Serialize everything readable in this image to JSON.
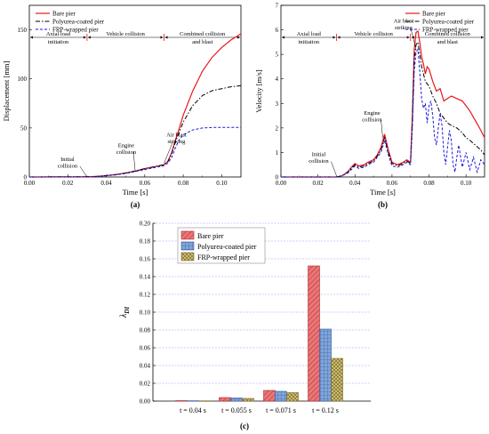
{
  "colors": {
    "bare": "#e8161b",
    "polyurea": "#000000",
    "frp": "#1a1adb",
    "bar_bare": "#e97678",
    "bar_polyurea": "#7fa6d9",
    "bar_frp": "#d8c67a",
    "grid": "#9a9af0"
  },
  "chart_data": [
    {
      "type": "line",
      "panel_label": "(a)",
      "xlabel": "Time [s]",
      "ylabel": "Displacement [mm]",
      "xlim": [
        0,
        0.11
      ],
      "ylim": [
        0,
        175
      ],
      "xticks": [
        "0.00",
        "0.02",
        "0.04",
        "0.06",
        "0.08",
        "0.10"
      ],
      "yticks": [
        "0",
        "50",
        "100",
        "150"
      ],
      "legend": {
        "position": "top-left"
      },
      "phases": [
        {
          "label_lines": [
            "Axial load",
            "initiation"
          ],
          "x": [
            0,
            0.03
          ]
        },
        {
          "label_lines": [
            "Vehicle collision"
          ],
          "x": [
            0.03,
            0.07
          ]
        },
        {
          "label_lines": [
            "Combined collision",
            "and blast"
          ],
          "x": [
            0.07,
            0.11
          ]
        }
      ],
      "annotations": [
        {
          "label_lines": [
            "Initial",
            "collision"
          ],
          "x": 0.03,
          "y": 0
        },
        {
          "label_lines": [
            "Engine",
            "collision"
          ],
          "x": 0.055,
          "y": 7
        },
        {
          "label_lines": [
            "Air blast",
            "striking"
          ],
          "x": 0.07,
          "y": 14
        }
      ],
      "series": [
        {
          "name": "Bare pier",
          "style": "solid",
          "x": [
            0,
            0.03,
            0.035,
            0.04,
            0.045,
            0.05,
            0.055,
            0.06,
            0.065,
            0.07,
            0.072,
            0.074,
            0.076,
            0.078,
            0.08,
            0.085,
            0.09,
            0.095,
            0.1,
            0.105,
            0.11
          ],
          "y": [
            0,
            0.2,
            0.6,
            1.4,
            2.5,
            4,
            6,
            8.5,
            10.5,
            12.5,
            16,
            25,
            38,
            50,
            63,
            88,
            108,
            122,
            132,
            140,
            146
          ]
        },
        {
          "name": "Polyurea-coated pier",
          "style": "dashdot",
          "x": [
            0,
            0.03,
            0.035,
            0.04,
            0.045,
            0.05,
            0.055,
            0.06,
            0.065,
            0.07,
            0.072,
            0.074,
            0.076,
            0.078,
            0.08,
            0.085,
            0.09,
            0.095,
            0.1,
            0.105,
            0.11
          ],
          "y": [
            0,
            0.2,
            0.6,
            1.4,
            2.5,
            4,
            6,
            8.5,
            10.5,
            12.5,
            15.5,
            24,
            36,
            46,
            56,
            73,
            83,
            88,
            90,
            92,
            93
          ]
        },
        {
          "name": "FRP-wrapped pier",
          "style": "dash",
          "x": [
            0,
            0.03,
            0.035,
            0.04,
            0.045,
            0.05,
            0.055,
            0.06,
            0.065,
            0.07,
            0.072,
            0.074,
            0.076,
            0.078,
            0.08,
            0.085,
            0.09,
            0.095,
            0.1,
            0.105,
            0.11
          ],
          "y": [
            0,
            0.2,
            0.5,
            1.2,
            2.2,
            3.5,
            5.5,
            7.5,
            9.5,
            11.5,
            14,
            20,
            30,
            38,
            43,
            48,
            50,
            50.5,
            50.5,
            50.5,
            50.5
          ]
        }
      ]
    },
    {
      "type": "line",
      "panel_label": "(b)",
      "xlabel": "Time [s]",
      "ylabel": "Velocity [m/s]",
      "xlim": [
        0,
        0.11
      ],
      "ylim": [
        0,
        7
      ],
      "xticks": [
        "0.00",
        "0.02",
        "0.04",
        "0.06",
        "0.08",
        "0.10"
      ],
      "yticks": [
        "0",
        "1",
        "2",
        "3",
        "4",
        "5",
        "6",
        "7"
      ],
      "legend": {
        "position": "top-right"
      },
      "phases": [
        {
          "label_lines": [
            "Axial load",
            "initiation"
          ],
          "x": [
            0,
            0.03
          ]
        },
        {
          "label_lines": [
            "Vehicle collision"
          ],
          "x": [
            0.03,
            0.07
          ]
        },
        {
          "label_lines": [
            "Combined collision",
            "and blast"
          ],
          "x": [
            0.07,
            0.11
          ]
        }
      ],
      "annotations": [
        {
          "label_lines": [
            "Initial",
            "collision"
          ],
          "x": 0.03,
          "y": 0.05
        },
        {
          "label_lines": [
            "Engine",
            "collision"
          ],
          "x": 0.055,
          "y": 1.6
        },
        {
          "label_lines": [
            "Air blast",
            "striking"
          ],
          "x": 0.073,
          "y": 5.2
        }
      ],
      "series": [
        {
          "name": "Bare pier",
          "style": "solid",
          "x": [
            0,
            0.03,
            0.033,
            0.036,
            0.038,
            0.04,
            0.042,
            0.045,
            0.047,
            0.05,
            0.052,
            0.054,
            0.056,
            0.058,
            0.06,
            0.063,
            0.066,
            0.068,
            0.07,
            0.071,
            0.072,
            0.073,
            0.074,
            0.075,
            0.076,
            0.077,
            0.078,
            0.079,
            0.08,
            0.082,
            0.084,
            0.086,
            0.088,
            0.09,
            0.092,
            0.095,
            0.098,
            0.1,
            0.102,
            0.105,
            0.108,
            0.11
          ],
          "y": [
            0,
            0,
            0.05,
            0.2,
            0.4,
            0.55,
            0.45,
            0.5,
            0.6,
            0.7,
            0.9,
            1.2,
            1.75,
            1.1,
            0.6,
            0.5,
            0.6,
            0.7,
            0.6,
            2.5,
            5.2,
            5.9,
            5.95,
            5.5,
            4.9,
            4.6,
            4.2,
            4.5,
            4.4,
            3.9,
            3.5,
            3.6,
            3.1,
            3.2,
            3.3,
            3.2,
            3.1,
            2.9,
            2.7,
            2.3,
            1.9,
            1.6
          ]
        },
        {
          "name": "Polyurea-coated pier",
          "style": "dashdot",
          "x": [
            0,
            0.03,
            0.033,
            0.036,
            0.038,
            0.04,
            0.042,
            0.045,
            0.047,
            0.05,
            0.052,
            0.054,
            0.056,
            0.058,
            0.06,
            0.063,
            0.066,
            0.068,
            0.07,
            0.071,
            0.072,
            0.073,
            0.074,
            0.075,
            0.076,
            0.077,
            0.078,
            0.08,
            0.082,
            0.084,
            0.086,
            0.088,
            0.09,
            0.092,
            0.095,
            0.098,
            0.1,
            0.102,
            0.105,
            0.108,
            0.11
          ],
          "y": [
            0,
            0,
            0.05,
            0.2,
            0.35,
            0.5,
            0.4,
            0.45,
            0.55,
            0.65,
            0.85,
            1.1,
            1.6,
            1.0,
            0.55,
            0.45,
            0.55,
            0.65,
            0.55,
            2.3,
            4.8,
            5.4,
            5.5,
            5.0,
            4.5,
            4.2,
            3.9,
            3.7,
            3.3,
            3.0,
            2.6,
            2.4,
            2.2,
            2.1,
            2.0,
            1.8,
            1.6,
            1.5,
            1.3,
            1.1,
            0.9
          ]
        },
        {
          "name": "FRP-wrapped pier",
          "style": "dash",
          "x": [
            0,
            0.03,
            0.033,
            0.036,
            0.038,
            0.04,
            0.042,
            0.045,
            0.047,
            0.05,
            0.052,
            0.054,
            0.056,
            0.058,
            0.06,
            0.063,
            0.066,
            0.068,
            0.07,
            0.071,
            0.072,
            0.073,
            0.074,
            0.075,
            0.076,
            0.077,
            0.078,
            0.079,
            0.08,
            0.081,
            0.082,
            0.083,
            0.084,
            0.085,
            0.086,
            0.087,
            0.088,
            0.089,
            0.09,
            0.091,
            0.092,
            0.093,
            0.094,
            0.095,
            0.096,
            0.098,
            0.1,
            0.102,
            0.104,
            0.106,
            0.108,
            0.11
          ],
          "y": [
            0,
            0,
            0.05,
            0.15,
            0.3,
            0.45,
            0.35,
            0.4,
            0.5,
            0.6,
            0.8,
            1.0,
            1.5,
            0.9,
            0.45,
            0.4,
            0.5,
            0.6,
            0.5,
            2.0,
            4.3,
            5.1,
            5.2,
            4.3,
            3.2,
            2.8,
            3.0,
            2.2,
            2.9,
            3.1,
            2.5,
            1.6,
            1.3,
            2.0,
            2.6,
            2.1,
            1.0,
            0.5,
            1.2,
            1.9,
            1.5,
            0.5,
            0.2,
            0.8,
            1.3,
            0.4,
            1.0,
            0.3,
            0.8,
            0.2,
            0.7,
            0.5
          ]
        }
      ]
    },
    {
      "type": "bar",
      "panel_label": "(c)",
      "ylabel": "λDI",
      "ylabel_main": "λ",
      "ylabel_sub": "DI",
      "ylim": [
        0,
        0.2
      ],
      "yticks": [
        "0.00",
        "0.02",
        "0.04",
        "0.06",
        "0.08",
        "0.10",
        "0.12",
        "0.14",
        "0.16",
        "0.18",
        "0.20"
      ],
      "categories": [
        "t = 0.04 s",
        "t = 0.055 s",
        "t = 0.071 s",
        "t = 0.12 s"
      ],
      "legend": {
        "position": "top-left"
      },
      "series": [
        {
          "name": "Bare pier",
          "values": [
            0.0005,
            0.004,
            0.012,
            0.152
          ]
        },
        {
          "name": "Polyurea-coated pier",
          "values": [
            0.0004,
            0.0035,
            0.011,
            0.081
          ]
        },
        {
          "name": "FRP-wrapped pier",
          "values": [
            0.0003,
            0.003,
            0.0095,
            0.048
          ]
        }
      ]
    }
  ]
}
